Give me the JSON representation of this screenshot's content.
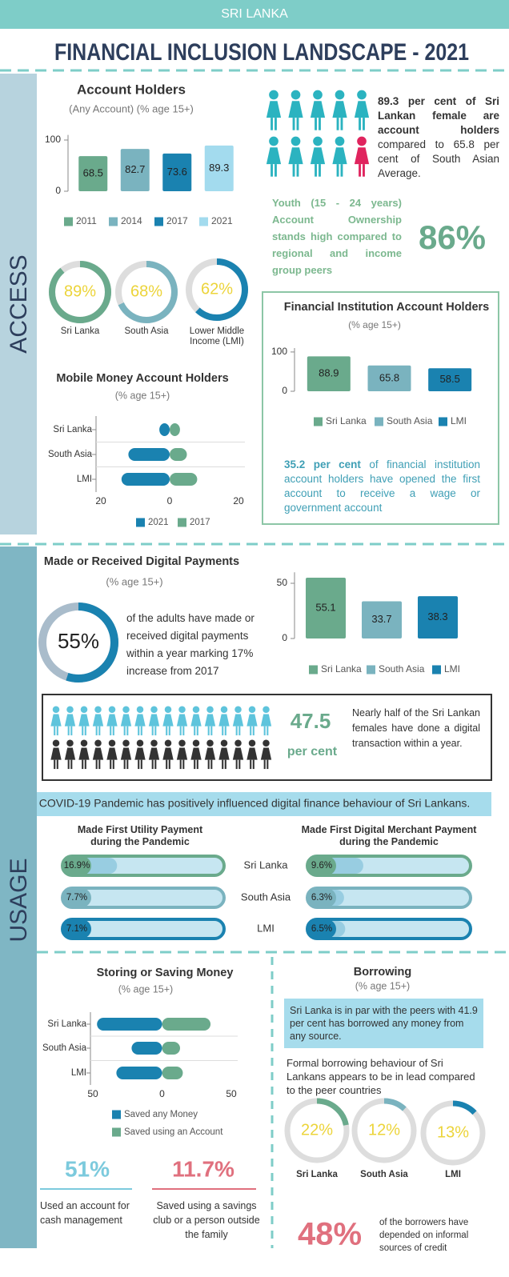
{
  "header": {
    "country": "SRI LANKA",
    "title": "FINANCIAL INCLUSION LANDSCAPE - 2021"
  },
  "sections": {
    "access": "ACCESS",
    "usage": "USAGE"
  },
  "texts": {
    "female_lead": "89.3 per cent of Sri Lankan female are account holders",
    "female_rest": "compared to 65.8 per cent of South Asian Average.",
    "youth": "Youth (15 - 24 years) Account Ownership stands high compared to regional and income group peers",
    "youth_value": "86%",
    "fi_lead": "35.2 per cent",
    "fi_rest": "of financial institution account holders have opened the first account to receive a wage or government account",
    "digital": "of the adults have made or received digital payments within a year marking 17% increase from 2017",
    "female_digital_value": "47.5",
    "female_digital_unit": "per cent",
    "female_digital": "Nearly half of the Sri Lankan females have done a digital transaction within a year.",
    "covid": "COVID-19 Pandemic has positively influenced digital finance behaviour of Sri Lankans.",
    "account_cash_value": "51%",
    "account_cash": "Used an account for cash management",
    "savings_club_value": "11.7%",
    "savings_club": "Saved using a savings club or a person outside the family",
    "borrow_peer": "Sri Lanka is in par with the peers with 41.9 per cent has borrowed any money from any source.",
    "borrow_formal": "Formal borrowing behaviour of Sri Lankans appears to be in lead compared to the peer countries",
    "informal_value": "48%",
    "informal": "of the borrowers have depended on informal sources of credit"
  },
  "chart_data": [
    {
      "type": "bar",
      "title": "Account Holders",
      "subtitle": "(Any Account) (% age 15+)",
      "categories": [
        "2011",
        "2014",
        "2017",
        "2021"
      ],
      "values": [
        68.5,
        82.7,
        73.6,
        89.3
      ],
      "colors": [
        "#6aaa8c",
        "#7ab3bf",
        "#1a82b0",
        "#a3dbee"
      ],
      "ylim": [
        0,
        110
      ],
      "yticks": [
        0,
        100
      ]
    },
    {
      "type": "donut",
      "categories": [
        "Sri Lanka",
        "South Asia",
        "Lower Middle Income (LMI)"
      ],
      "values": [
        89,
        68,
        62
      ],
      "value_labels": [
        "89%",
        "68%",
        "62%"
      ],
      "colors": [
        "#6aaa8c",
        "#7ab3bf",
        "#1a82b0"
      ]
    },
    {
      "type": "butterfly",
      "title": "Mobile Money Account Holders",
      "subtitle": "(% age 15+)",
      "categories": [
        "Sri Lanka",
        "South Asia",
        "LMI"
      ],
      "series": [
        {
          "name": "2021",
          "color": "#1a82b0",
          "values": [
            3,
            12,
            14
          ]
        },
        {
          "name": "2017",
          "color": "#6aaa8c",
          "values": [
            3,
            5,
            8
          ]
        }
      ],
      "xlim": [
        -20,
        20
      ],
      "xticks": [
        {
          "value": -20,
          "label": "20"
        },
        0,
        20
      ]
    },
    {
      "type": "bar",
      "title": "Financial Institution Account Holders",
      "subtitle": "(% age 15+)",
      "categories": [
        "Sri Lanka",
        "South Asia",
        "LMI"
      ],
      "values": [
        88.9,
        65.8,
        58.5
      ],
      "colors": [
        "#6aaa8c",
        "#7ab3bf",
        "#1a82b0"
      ],
      "ylim": [
        0,
        110
      ],
      "yticks": [
        0,
        100
      ]
    },
    {
      "type": "bar",
      "title": "Made or Received Digital Payments",
      "subtitle": "(% age 15+)",
      "categories": [
        "Sri Lanka",
        "South Asia",
        "LMI"
      ],
      "values": [
        55.1,
        33.7,
        38.3
      ],
      "colors": [
        "#6aaa8c",
        "#7ab3bf",
        "#1a82b0"
      ],
      "ylim": [
        0,
        60
      ],
      "yticks": [
        0,
        50
      ]
    },
    {
      "type": "donut",
      "values": [
        55
      ],
      "value_labels": [
        "55%"
      ],
      "colors": [
        "#1a82b0"
      ]
    },
    {
      "type": "progress",
      "title": "Made First Utility Payment during the Pandemic",
      "categories": [
        "Sri Lanka",
        "South Asia",
        "LMI"
      ],
      "values": [
        16.9,
        7.7,
        7.1
      ],
      "value_labels": [
        "16.9%",
        "7.7%",
        "7.1%"
      ],
      "colors": [
        "#6aaa8c",
        "#7ab3bf",
        "#1a82b0"
      ],
      "xlim": [
        0,
        50
      ]
    },
    {
      "type": "progress",
      "title": "Made First Digital Merchant Payment during the Pandemic",
      "values": [
        9.6,
        6.3,
        6.5
      ],
      "value_labels": [
        "9.6%",
        "6.3%",
        "6.5%"
      ],
      "colors": [
        "#6aaa8c",
        "#7ab3bf",
        "#1a82b0"
      ],
      "xlim": [
        0,
        28
      ]
    },
    {
      "type": "butterfly",
      "title": "Storing or Saving Money",
      "subtitle": "(% age 15+)",
      "categories": [
        "Sri Lanka",
        "South Asia",
        "LMI"
      ],
      "series": [
        {
          "name": "Saved any Money",
          "color": "#1a82b0",
          "values": [
            47,
            22,
            33
          ]
        },
        {
          "name": "Saved using an Account",
          "color": "#6aaa8c",
          "values": [
            35,
            13,
            15
          ]
        }
      ],
      "xlim": [
        -50,
        50
      ],
      "xticks": [
        {
          "value": -50,
          "label": "50"
        },
        0,
        50
      ]
    },
    {
      "type": "donut",
      "title": "Borrowing",
      "subtitle": "(% age 15+)",
      "categories": [
        "Sri Lanka",
        "South Asia",
        "LMI"
      ],
      "values": [
        22,
        12,
        13
      ],
      "value_labels": [
        "22%",
        "12%",
        "13%"
      ],
      "colors": [
        "#6aaa8c",
        "#7ab3bf",
        "#1a82b0"
      ]
    }
  ]
}
